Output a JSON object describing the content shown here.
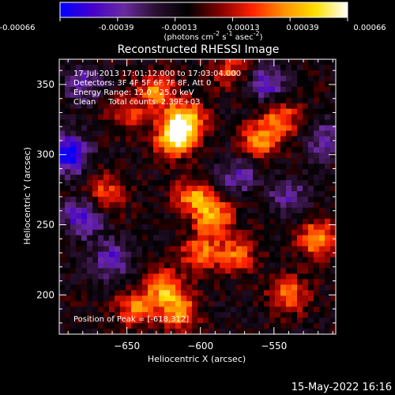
{
  "colorbar": {
    "tick_labels": [
      "-0.00066",
      "-0.00039",
      "-0.00013",
      "0.00013",
      "0.00039",
      "0.00066"
    ],
    "range": [
      -0.00066,
      0.00066
    ],
    "unit_label_base": "(photons cm",
    "unit_label_exp1": "-2",
    "unit_label_mid1": " s",
    "unit_label_exp2": "-1",
    "unit_label_mid2": " asec",
    "unit_label_exp3": "-2",
    "unit_label_end": ")",
    "colormap": [
      "#0000ff",
      "#4400cc",
      "#6a2aa0",
      "#2a1030",
      "#000000",
      "#800000",
      "#ff2000",
      "#ff9000",
      "#ffe000",
      "#ffffff"
    ]
  },
  "chart_data": {
    "type": "heatmap",
    "title": "Reconstructed RHESSI Image",
    "xlabel": "Heliocentric X (arcsec)",
    "ylabel": "Heliocentric Y (arcsec)",
    "xlim": [
      -696,
      -508
    ],
    "ylim": [
      172,
      368
    ],
    "x_ticks": [
      -650,
      -600,
      -550
    ],
    "x_tick_labels": [
      "−650",
      "−600",
      "−550"
    ],
    "y_ticks": [
      200,
      250,
      300,
      350
    ],
    "y_tick_labels": [
      "200",
      "250",
      "300",
      "350"
    ],
    "annotations": [
      "17-Jul-2013 17:01:12.000 to 17:03:04.000",
      "Detectors: 3F 4F 5F 6F 7F 8F, Att 0",
      "Energy Range: 12.0 - 25.0 keV",
      "Clean     Total counts: 2.39E+03"
    ],
    "peak_label": "Position of Peak = [-618,312]",
    "peak": [
      -618,
      312
    ],
    "hot_spots": [
      {
        "x": -618,
        "y": 312,
        "v": 0.00066
      },
      {
        "x": -610,
        "y": 325,
        "v": 0.0006
      },
      {
        "x": -630,
        "y": 345,
        "v": 0.00045
      },
      {
        "x": -605,
        "y": 270,
        "v": 0.00045
      },
      {
        "x": -590,
        "y": 255,
        "v": 0.0005
      },
      {
        "x": -600,
        "y": 230,
        "v": 0.00042
      },
      {
        "x": -625,
        "y": 205,
        "v": 0.00048
      },
      {
        "x": -645,
        "y": 190,
        "v": 0.0004
      },
      {
        "x": -615,
        "y": 188,
        "v": 0.00045
      },
      {
        "x": -560,
        "y": 310,
        "v": 0.00045
      },
      {
        "x": -545,
        "y": 325,
        "v": 0.0004
      },
      {
        "x": -520,
        "y": 240,
        "v": 0.0005
      },
      {
        "x": -575,
        "y": 228,
        "v": 0.00038
      },
      {
        "x": -540,
        "y": 200,
        "v": 0.0004
      },
      {
        "x": -665,
        "y": 272,
        "v": 0.00035
      },
      {
        "x": -650,
        "y": 330,
        "v": 0.0003
      },
      {
        "x": -580,
        "y": 360,
        "v": 0.00032
      }
    ],
    "cold_spots": [
      {
        "x": -690,
        "y": 300,
        "v": -0.0006
      },
      {
        "x": -680,
        "y": 255,
        "v": -0.00045
      },
      {
        "x": -555,
        "y": 350,
        "v": -0.00035
      },
      {
        "x": -575,
        "y": 285,
        "v": -0.0003
      },
      {
        "x": -660,
        "y": 225,
        "v": -0.00035
      },
      {
        "x": -515,
        "y": 310,
        "v": -0.0003
      },
      {
        "x": -540,
        "y": 270,
        "v": -0.00028
      },
      {
        "x": -680,
        "y": 350,
        "v": -0.0003
      }
    ]
  },
  "footer": {
    "date": "15-May-2022 16:16"
  }
}
